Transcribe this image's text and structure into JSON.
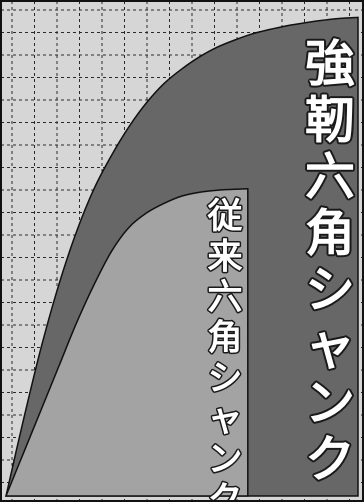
{
  "colors": {
    "background": "#d6d6d6",
    "grid": "#2a2a2a",
    "strong_area": "#676767",
    "conventional_area": "#a3a3a3",
    "label_fill": "#ffffff",
    "label_stroke": "#1a1a1a",
    "frame": "#111111"
  },
  "chart_data": {
    "type": "area",
    "title": "",
    "xlabel": "",
    "ylabel": "",
    "grid": true,
    "axes_labeled": false,
    "series": [
      {
        "name": "強靭六角シャンク",
        "x": [
          0,
          0.05,
          0.1,
          0.15,
          0.2,
          0.25,
          0.3,
          0.35,
          0.4,
          0.45,
          0.5,
          0.55,
          0.6,
          0.65,
          0.7,
          0.75,
          0.8,
          0.85,
          0.9,
          0.95,
          1.0
        ],
        "values": [
          0,
          0.16,
          0.31,
          0.44,
          0.55,
          0.64,
          0.71,
          0.77,
          0.82,
          0.86,
          0.89,
          0.915,
          0.935,
          0.95,
          0.963,
          0.972,
          0.98,
          0.986,
          0.991,
          0.995,
          0.997
        ],
        "label": "強靭六角シャンク"
      },
      {
        "name": "従来六角シャンク",
        "x": [
          0,
          0.05,
          0.1,
          0.15,
          0.2,
          0.25,
          0.3,
          0.35,
          0.4,
          0.45,
          0.5,
          0.55,
          0.6,
          0.65,
          0.687
        ],
        "values": [
          0,
          0.09,
          0.18,
          0.27,
          0.36,
          0.44,
          0.51,
          0.56,
          0.59,
          0.61,
          0.625,
          0.633,
          0.637,
          0.639,
          0.64
        ],
        "label": "従来六角シャンク"
      }
    ]
  }
}
